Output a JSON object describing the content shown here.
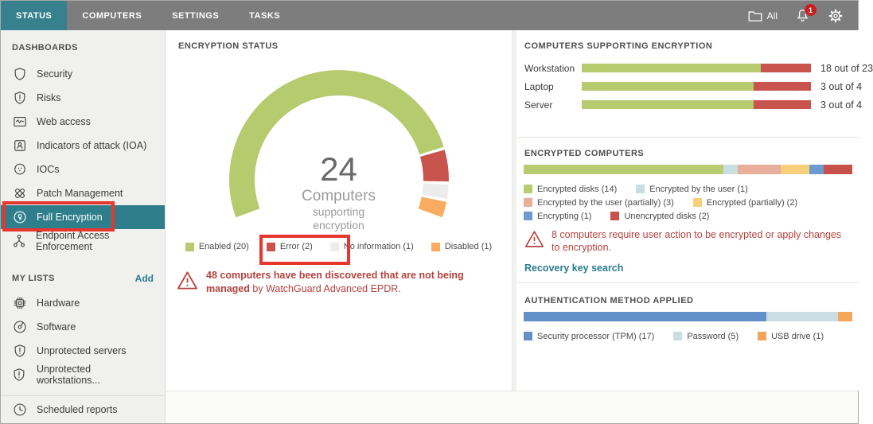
{
  "topnav": {
    "tabs": [
      {
        "label": "STATUS",
        "active": true
      },
      {
        "label": "COMPUTERS",
        "active": false
      },
      {
        "label": "SETTINGS",
        "active": false
      },
      {
        "label": "TASKS",
        "active": false
      }
    ],
    "folder_label": "All",
    "notification_count": "1"
  },
  "sidebar": {
    "sections": [
      {
        "title": "DASHBOARDS",
        "action": "",
        "items": [
          {
            "label": "Security",
            "icon": "shield"
          },
          {
            "label": "Risks",
            "icon": "shield-alert"
          },
          {
            "label": "Web access",
            "icon": "web"
          },
          {
            "label": "Indicators of attack (IOA)",
            "icon": "person-box"
          },
          {
            "label": "IOCs",
            "icon": "ioc"
          },
          {
            "label": "Patch Management",
            "icon": "patch"
          },
          {
            "label": "Full Encryption",
            "icon": "encryption",
            "selected": true,
            "annotated": true
          },
          {
            "label": "Endpoint Access Enforcement",
            "icon": "endpoint"
          }
        ]
      },
      {
        "title": "MY LISTS",
        "action": "Add",
        "items": [
          {
            "label": "Hardware",
            "icon": "chip"
          },
          {
            "label": "Software",
            "icon": "disc"
          },
          {
            "label": "Unprotected servers",
            "icon": "shield-alert"
          },
          {
            "label": "Unprotected workstations...",
            "icon": "shield-alert"
          }
        ]
      }
    ],
    "footer_item": {
      "label": "Scheduled reports",
      "icon": "clock"
    }
  },
  "panels": {
    "encryption_status": {
      "title": "ENCRYPTION STATUS",
      "center": {
        "value": "24",
        "label": "Computers",
        "sub1": "supporting",
        "sub2": "encryption"
      },
      "segments": [
        {
          "label": "Enabled",
          "value": 20,
          "color": "#b6ca6e",
          "display": "Enabled (20)"
        },
        {
          "label": "Error",
          "value": 2,
          "color": "#c9544e",
          "display": "Error (2)",
          "annotated": true
        },
        {
          "label": "No information",
          "value": 1,
          "color": "#ececec",
          "display": "No information (1)"
        },
        {
          "label": "Disabled",
          "value": 1,
          "color": "#fbab60",
          "display": "Disabled (1)"
        }
      ],
      "warning_bold": "48 computers have been discovered that are not being managed",
      "warning_rest": " by WatchGuard Advanced EPDR."
    },
    "supporting": {
      "title": "COMPUTERS SUPPORTING ENCRYPTION",
      "colors": {
        "supported": "#b6ca6e",
        "not_supported": "#c9544e"
      },
      "rows": [
        {
          "label": "Workstation",
          "value": 18,
          "total": 23,
          "text": "18 out of 23"
        },
        {
          "label": "Laptop",
          "value": 3,
          "total": 4,
          "text": "3 out of 4"
        },
        {
          "label": "Server",
          "value": 3,
          "total": 4,
          "text": "3 out of 4"
        }
      ]
    },
    "encrypted": {
      "title": "ENCRYPTED COMPUTERS",
      "segments": [
        {
          "label": "Encrypted disks",
          "value": 14,
          "color": "#b8cc72",
          "display": "Encrypted disks (14)"
        },
        {
          "label": "Encrypted by the user",
          "value": 1,
          "color": "#c9dee3",
          "display": "Encrypted by the user (1)"
        },
        {
          "label": "Encrypted by the user (partially)",
          "value": 3,
          "color": "#e9ae9c",
          "display": "Encrypted by the user (partially) (3)"
        },
        {
          "label": "Encrypted (partially)",
          "value": 2,
          "color": "#f8d07b",
          "display": "Encrypted (partially) (2)"
        },
        {
          "label": "Encrypting",
          "value": 1,
          "color": "#6b9bd0",
          "display": "Encrypting (1)"
        },
        {
          "label": "Unencrypted disks",
          "value": 2,
          "color": "#c8524b",
          "display": "Unencrypted disks (2)"
        }
      ],
      "warning": "8 computers require user action to be encrypted or apply changes to encryption.",
      "link": "Recovery key search"
    },
    "authentication": {
      "title": "AUTHENTICATION METHOD APPLIED",
      "segments": [
        {
          "label": "Security processor (TPM)",
          "value": 17,
          "color": "#6191c8",
          "display": "Security processor (TPM) (17)"
        },
        {
          "label": "Password",
          "value": 5,
          "color": "#ccdce3",
          "display": "Password (5)"
        },
        {
          "label": "USB drive",
          "value": 1,
          "color": "#f5a55b",
          "display": "USB drive (1)"
        }
      ]
    }
  },
  "chart_data": [
    {
      "type": "pie",
      "variant": "donut-gauge",
      "title": "ENCRYPTION STATUS",
      "center_text": [
        "24",
        "Computers",
        "supporting",
        "encryption"
      ],
      "labels": [
        "Enabled",
        "Error",
        "No information",
        "Disabled"
      ],
      "values": [
        20,
        2,
        1,
        1
      ],
      "colors": [
        "#b6ca6e",
        "#c9544e",
        "#ececec",
        "#fbab60"
      ],
      "legend_position": "bottom"
    },
    {
      "type": "bar",
      "variant": "horizontal-stacked",
      "title": "COMPUTERS SUPPORTING ENCRYPTION",
      "categories": [
        "Workstation",
        "Laptop",
        "Server"
      ],
      "series": [
        {
          "name": "Supporting",
          "values": [
            18,
            3,
            3
          ],
          "color": "#b6ca6e"
        },
        {
          "name": "Not supporting",
          "values": [
            5,
            1,
            1
          ],
          "color": "#c9544e"
        }
      ],
      "annotations": [
        "18 out of 23",
        "3 out of 4",
        "3 out of 4"
      ]
    },
    {
      "type": "bar",
      "variant": "stacked-single",
      "title": "ENCRYPTED COMPUTERS",
      "labels": [
        "Encrypted disks",
        "Encrypted by the user",
        "Encrypted by the user (partially)",
        "Encrypted (partially)",
        "Encrypting",
        "Unencrypted disks"
      ],
      "values": [
        14,
        1,
        3,
        2,
        1,
        2
      ],
      "colors": [
        "#b8cc72",
        "#c9dee3",
        "#e9ae9c",
        "#f8d07b",
        "#6b9bd0",
        "#c8524b"
      ]
    },
    {
      "type": "bar",
      "variant": "stacked-single",
      "title": "AUTHENTICATION METHOD APPLIED",
      "labels": [
        "Security processor (TPM)",
        "Password",
        "USB drive"
      ],
      "values": [
        17,
        5,
        1
      ],
      "colors": [
        "#6191c8",
        "#ccdce3",
        "#f5a55b"
      ]
    }
  ],
  "colors": {
    "accent_teal": "#37808e",
    "selected_teal": "#2f7e8c",
    "annotation_red": "#e6372e",
    "warning_red": "#b5423e",
    "link_teal": "#2a7c8c",
    "nav_gray": "#7d7d7d"
  }
}
